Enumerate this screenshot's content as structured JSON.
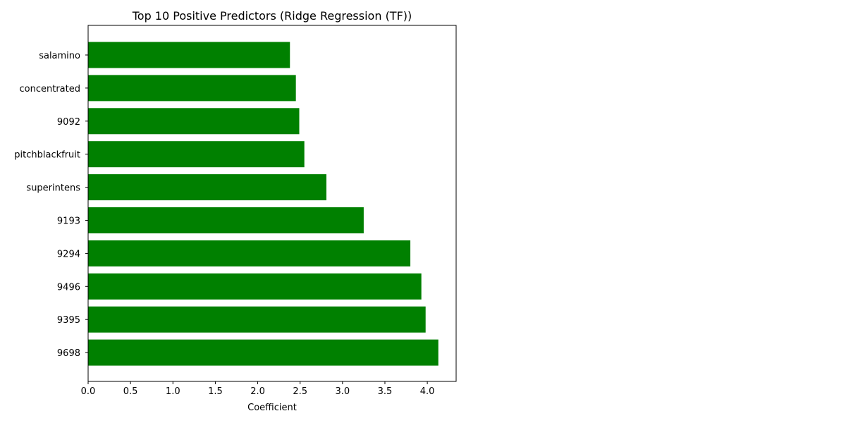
{
  "chart_data": {
    "type": "bar",
    "orientation": "horizontal",
    "title": "Top 10 Positive Predictors (Ridge Regression (TF))",
    "xlabel": "Coefficient",
    "ylabel": "",
    "categories": [
      "salamino",
      "concentrated",
      "9092",
      "pitchblackfruit",
      "superintens",
      "9193",
      "9294",
      "9496",
      "9395",
      "9698"
    ],
    "values": [
      2.38,
      2.45,
      2.49,
      2.55,
      2.81,
      3.25,
      3.8,
      3.93,
      3.98,
      4.13
    ],
    "xlim": [
      0,
      4.34
    ],
    "xticks": [
      0.0,
      0.5,
      1.0,
      1.5,
      2.0,
      2.5,
      3.0,
      3.5,
      4.0
    ],
    "xtick_labels": [
      "0.0",
      "0.5",
      "1.0",
      "1.5",
      "2.0",
      "2.5",
      "3.0",
      "3.5",
      "4.0"
    ],
    "bar_color": "#008000",
    "grid": false
  }
}
